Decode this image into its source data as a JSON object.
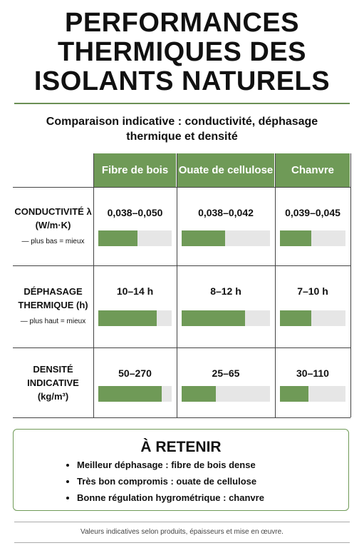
{
  "header": {
    "title": "PERFORMANCES THERMIQUES DES ISOLANTS NATURELS",
    "subtitle": "Comparaison indicative : conductivité, déphasage thermique et densité"
  },
  "table": {
    "columns": [
      "Fibre de bois",
      "Ouate de cellulose",
      "Chanvre"
    ],
    "rows": [
      {
        "label": "CONDUCTIVITÉ λ",
        "unit": "(W/m·K)",
        "note": "— plus bas = mieux",
        "values": [
          "0,038–0,050",
          "0,038–0,042",
          "0,039–0,045"
        ],
        "bars": [
          53,
          49,
          48
        ]
      },
      {
        "label": "DÉPHASAGE THERMIQUE (h)",
        "note": "— plus haut = mieux",
        "values": [
          "10–14 h",
          "8–12 h",
          "7–10 h"
        ],
        "bars": [
          80,
          72,
          48
        ]
      },
      {
        "label": "DENSITÉ INDICATIVE",
        "unit": "(kg/m³)",
        "values": [
          "50–270",
          "25–65",
          "30–110"
        ],
        "bars": [
          86,
          39,
          44
        ]
      }
    ]
  },
  "summary": {
    "title": "À RETENIR",
    "items": [
      "Meilleur déphasage : fibre de bois dense",
      "Très bon compromis : ouate de cellulose",
      "Bonne régulation hygrométrique : chanvre"
    ]
  },
  "footer": "Valeurs indicatives selon produits, épaisseurs et mise en œuvre."
}
